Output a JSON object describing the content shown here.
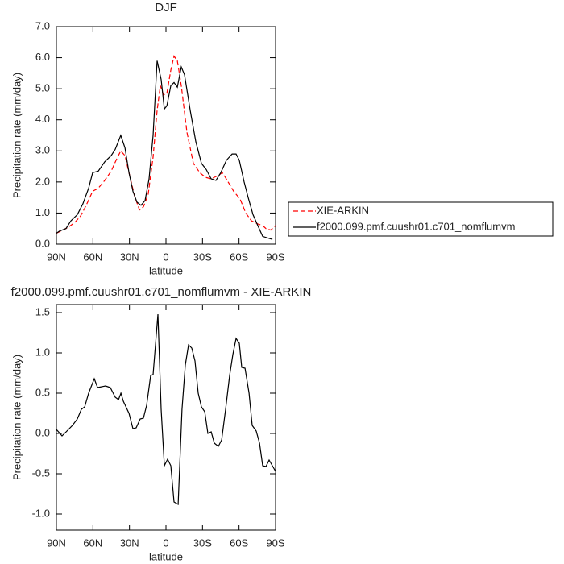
{
  "chart_data": [
    {
      "type": "line",
      "title": "DJF",
      "x_label": "latitude",
      "y_label": "Precipitation rate (mm/day)",
      "xlim": [
        90,
        -90
      ],
      "xticks": [
        {
          "value": 90,
          "label": "90N"
        },
        {
          "value": 60,
          "label": "60N"
        },
        {
          "value": 30,
          "label": "30N"
        },
        {
          "value": 0,
          "label": "0"
        },
        {
          "value": -30,
          "label": "30S"
        },
        {
          "value": -60,
          "label": "60S"
        },
        {
          "value": -90,
          "label": "90S"
        }
      ],
      "ylim": [
        0,
        7
      ],
      "yticks": [
        {
          "value": 0,
          "label": "0.0"
        },
        {
          "value": 1,
          "label": "1.0"
        },
        {
          "value": 2,
          "label": "2.0"
        },
        {
          "value": 3,
          "label": "3.0"
        },
        {
          "value": 4,
          "label": "4.0"
        },
        {
          "value": 5,
          "label": "5.0"
        },
        {
          "value": 6,
          "label": "6.0"
        },
        {
          "value": 7,
          "label": "7.0"
        }
      ],
      "legend": "right",
      "series": [
        {
          "name": "XIE-ARKIN",
          "color": "#ff0000",
          "line_style": "dashed",
          "x": [
            90,
            84.7,
            80.1,
            74.8,
            70.2,
            65.5,
            60.2,
            55.6,
            50.3,
            45.0,
            40.4,
            37.1,
            33.7,
            30.4,
            25.8,
            21.8,
            18.5,
            14.6,
            10.6,
            7.3,
            4.6,
            2.0,
            -0.7,
            -4.0,
            -6.6,
            -9.3,
            -12.6,
            -17.2,
            -22.5,
            -27.8,
            -32.4,
            -37.1,
            -42.4,
            -46.3,
            -50.3,
            -55.6,
            -60.9,
            -65.5,
            -70.2,
            -75.4,
            -79.4,
            -82.1,
            -86.0,
            -90
          ],
          "values": [
            0.35,
            0.45,
            0.55,
            0.7,
            0.9,
            1.25,
            1.7,
            1.8,
            2.05,
            2.35,
            2.75,
            3.0,
            2.85,
            2.3,
            1.55,
            1.1,
            1.2,
            1.6,
            2.8,
            4.3,
            5.1,
            4.8,
            4.85,
            5.6,
            6.05,
            5.9,
            5.1,
            3.6,
            2.6,
            2.3,
            2.15,
            2.1,
            2.2,
            2.3,
            2.05,
            1.7,
            1.45,
            1.0,
            0.75,
            0.65,
            0.6,
            0.5,
            0.45,
            0.6
          ]
        },
        {
          "name": "f2000.099.pmf.cuushr01.c701_nomflumvm",
          "color": "#000000",
          "line_style": "solid",
          "x": [
            90,
            87.4,
            82.1,
            78.1,
            72.8,
            68.2,
            63.5,
            60.2,
            55.6,
            50.3,
            45.0,
            41.7,
            37.1,
            33.7,
            30.4,
            27.1,
            23.8,
            20.5,
            17.2,
            13.9,
            10.6,
            7.3,
            4.0,
            1.3,
            -0.7,
            -4.0,
            -6.6,
            -9.3,
            -12.6,
            -15.2,
            -19.9,
            -24.5,
            -29.1,
            -33.1,
            -37.1,
            -41.0,
            -45.0,
            -49.6,
            -54.3,
            -57.6,
            -60.2,
            -64.2,
            -67.5,
            -71.5,
            -75.4,
            -79.4,
            -83.4,
            -87.4
          ],
          "values": [
            0.35,
            0.42,
            0.5,
            0.75,
            0.95,
            1.3,
            1.8,
            2.3,
            2.35,
            2.65,
            2.85,
            3.05,
            3.5,
            3.1,
            2.3,
            1.7,
            1.35,
            1.25,
            1.4,
            2.1,
            3.5,
            5.9,
            5.3,
            4.35,
            4.45,
            5.1,
            5.2,
            5.05,
            5.7,
            5.45,
            4.3,
            3.3,
            2.6,
            2.4,
            2.1,
            2.05,
            2.3,
            2.7,
            2.9,
            2.9,
            2.7,
            2.0,
            1.5,
            0.95,
            0.6,
            0.25,
            0.2,
            0.15
          ]
        }
      ]
    },
    {
      "type": "line",
      "title": "f2000.099.pmf.cuushr01.c701_nomflumvm - XIE-ARKIN",
      "x_label": "latitude",
      "y_label": "Precipitation rate (mm/day)",
      "xlim": [
        90,
        -90
      ],
      "xticks": [
        {
          "value": 90,
          "label": "90N"
        },
        {
          "value": 60,
          "label": "60N"
        },
        {
          "value": 30,
          "label": "30N"
        },
        {
          "value": 0,
          "label": "0"
        },
        {
          "value": -30,
          "label": "30S"
        },
        {
          "value": -60,
          "label": "60S"
        },
        {
          "value": -90,
          "label": "90S"
        }
      ],
      "ylim": [
        -1.2,
        1.6
      ],
      "yticks": [
        {
          "value": -1,
          "label": "-1.0"
        },
        -0.5,
        {
          "value": 0,
          "label": "0.0"
        },
        0.5,
        {
          "value": 1,
          "label": "1.0"
        },
        1.5
      ],
      "color": "#000000",
      "x": [
        90,
        85.4,
        82,
        76.8,
        72.8,
        69.5,
        66.8,
        63.5,
        58.9,
        56.2,
        49.6,
        45.7,
        41.7,
        39,
        37,
        35,
        30.4,
        27.1,
        24.5,
        21.2,
        18.5,
        15.9,
        12.6,
        10.6,
        6.6,
        4,
        1.3,
        -1.3,
        -4,
        -6.6,
        -10,
        -13.2,
        -15.9,
        -18.5,
        -21.2,
        -23.8,
        -26.5,
        -29.1,
        -31.8,
        -34.4,
        -37.1,
        -39.7,
        -43,
        -45.7,
        -49,
        -52.3,
        -54.9,
        -57.6,
        -60.2,
        -62.2,
        -64.9,
        -68.2,
        -70.8,
        -74.1,
        -76.8,
        -79.4,
        -82.1,
        -84.7,
        -90
      ],
      "values": [
        0.05,
        -0.03,
        0.02,
        0.1,
        0.18,
        0.3,
        0.33,
        0.5,
        0.68,
        0.57,
        0.59,
        0.57,
        0.45,
        0.42,
        0.5,
        0.4,
        0.25,
        0.06,
        0.07,
        0.18,
        0.19,
        0.35,
        0.72,
        0.73,
        1.48,
        0.3,
        -0.4,
        -0.32,
        -0.4,
        -0.85,
        -0.88,
        0.3,
        0.85,
        1.1,
        1.06,
        0.9,
        0.5,
        0.33,
        0.27,
        0.0,
        0.02,
        -0.12,
        -0.16,
        -0.08,
        0.3,
        0.72,
        0.98,
        1.18,
        1.12,
        0.82,
        0.81,
        0.5,
        0.1,
        0.03,
        -0.12,
        -0.4,
        -0.41,
        -0.33,
        -0.47
      ]
    }
  ]
}
